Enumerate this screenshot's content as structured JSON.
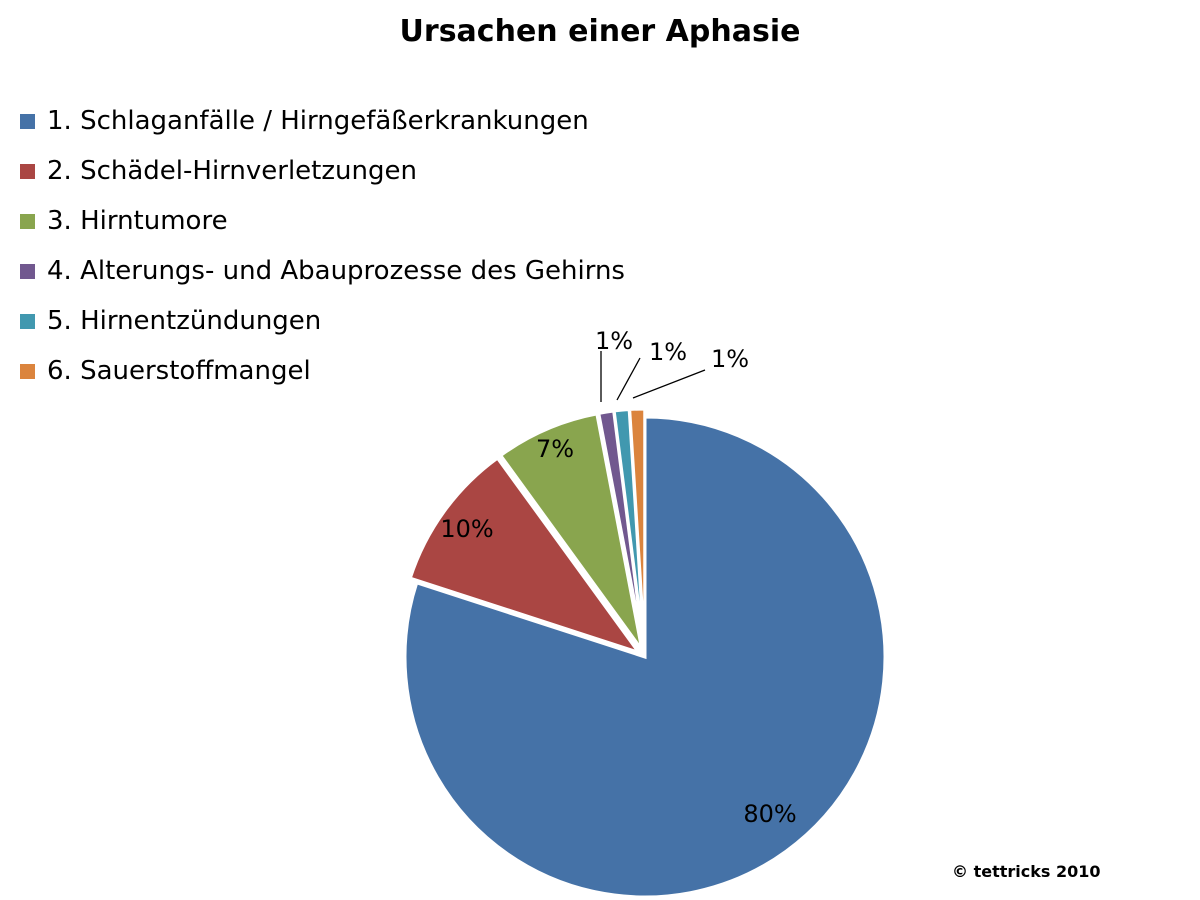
{
  "chart_data": {
    "type": "pie",
    "title": "Ursachen einer Aphasie",
    "categories": [
      "1. Schlaganfälle / Hirngefäßerkrankungen",
      "2. Schädel-Hirnverletzungen",
      "3. Hirntumore",
      "4. Alterungs- und Abauprozesse des Gehirns",
      "5. Hirnentzündungen",
      "6. Sauerstoffmangel"
    ],
    "values": [
      80,
      10,
      7,
      1,
      1,
      1
    ],
    "data_labels": [
      "80%",
      "10%",
      "7%",
      "1%",
      "1%",
      "1%"
    ],
    "colors": [
      "#4572A7",
      "#AA4643",
      "#89A54E",
      "#71588F",
      "#4198AF",
      "#DB843D"
    ],
    "legend_position": "top-left",
    "exploded": true
  },
  "footer": {
    "copyright": "© tettricks 2010"
  }
}
